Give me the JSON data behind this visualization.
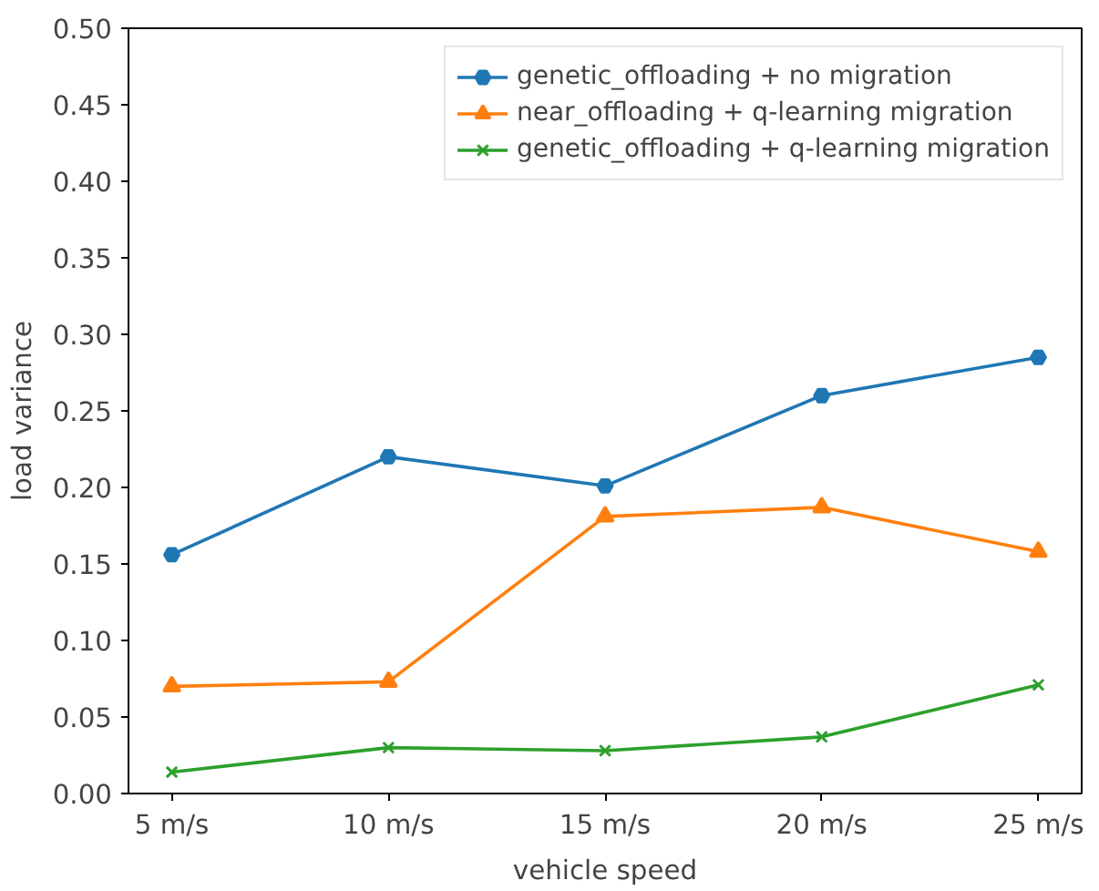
{
  "chart_data": {
    "type": "line",
    "xlabel": "vehicle speed",
    "ylabel": "load variance",
    "categories": [
      "5 m/s",
      "10 m/s",
      "15 m/s",
      "20 m/s",
      "25 m/s"
    ],
    "series": [
      {
        "name": "genetic_offloading + no migration",
        "color": "#1f77b4",
        "marker": "circle",
        "values": [
          0.156,
          0.22,
          0.201,
          0.26,
          0.285
        ]
      },
      {
        "name": "near_offloading + q-learning migration",
        "color": "#ff7f0e",
        "marker": "triangle",
        "values": [
          0.07,
          0.073,
          0.181,
          0.187,
          0.158
        ]
      },
      {
        "name": "genetic_offloading + q-learning migration",
        "color": "#2ca02c",
        "marker": "cross",
        "values": [
          0.014,
          0.03,
          0.028,
          0.037,
          0.071
        ]
      }
    ],
    "ylim": [
      0,
      0.5
    ],
    "yticks": [
      {
        "value": 0,
        "label": "0.00"
      },
      {
        "value": 0.05,
        "label": "0.05"
      },
      {
        "value": 0.1,
        "label": "0.10"
      },
      {
        "value": 0.15,
        "label": "0.15"
      },
      {
        "value": 0.2,
        "label": "0.20"
      },
      {
        "value": 0.25,
        "label": "0.25"
      },
      {
        "value": 0.3,
        "label": "0.30"
      },
      {
        "value": 0.35,
        "label": "0.35"
      },
      {
        "value": 0.4,
        "label": "0.40"
      },
      {
        "value": 0.45,
        "label": "0.45"
      },
      {
        "value": 0.5,
        "label": "0.50"
      }
    ],
    "grid": false,
    "legend": "top right",
    "line_style": "solid"
  }
}
